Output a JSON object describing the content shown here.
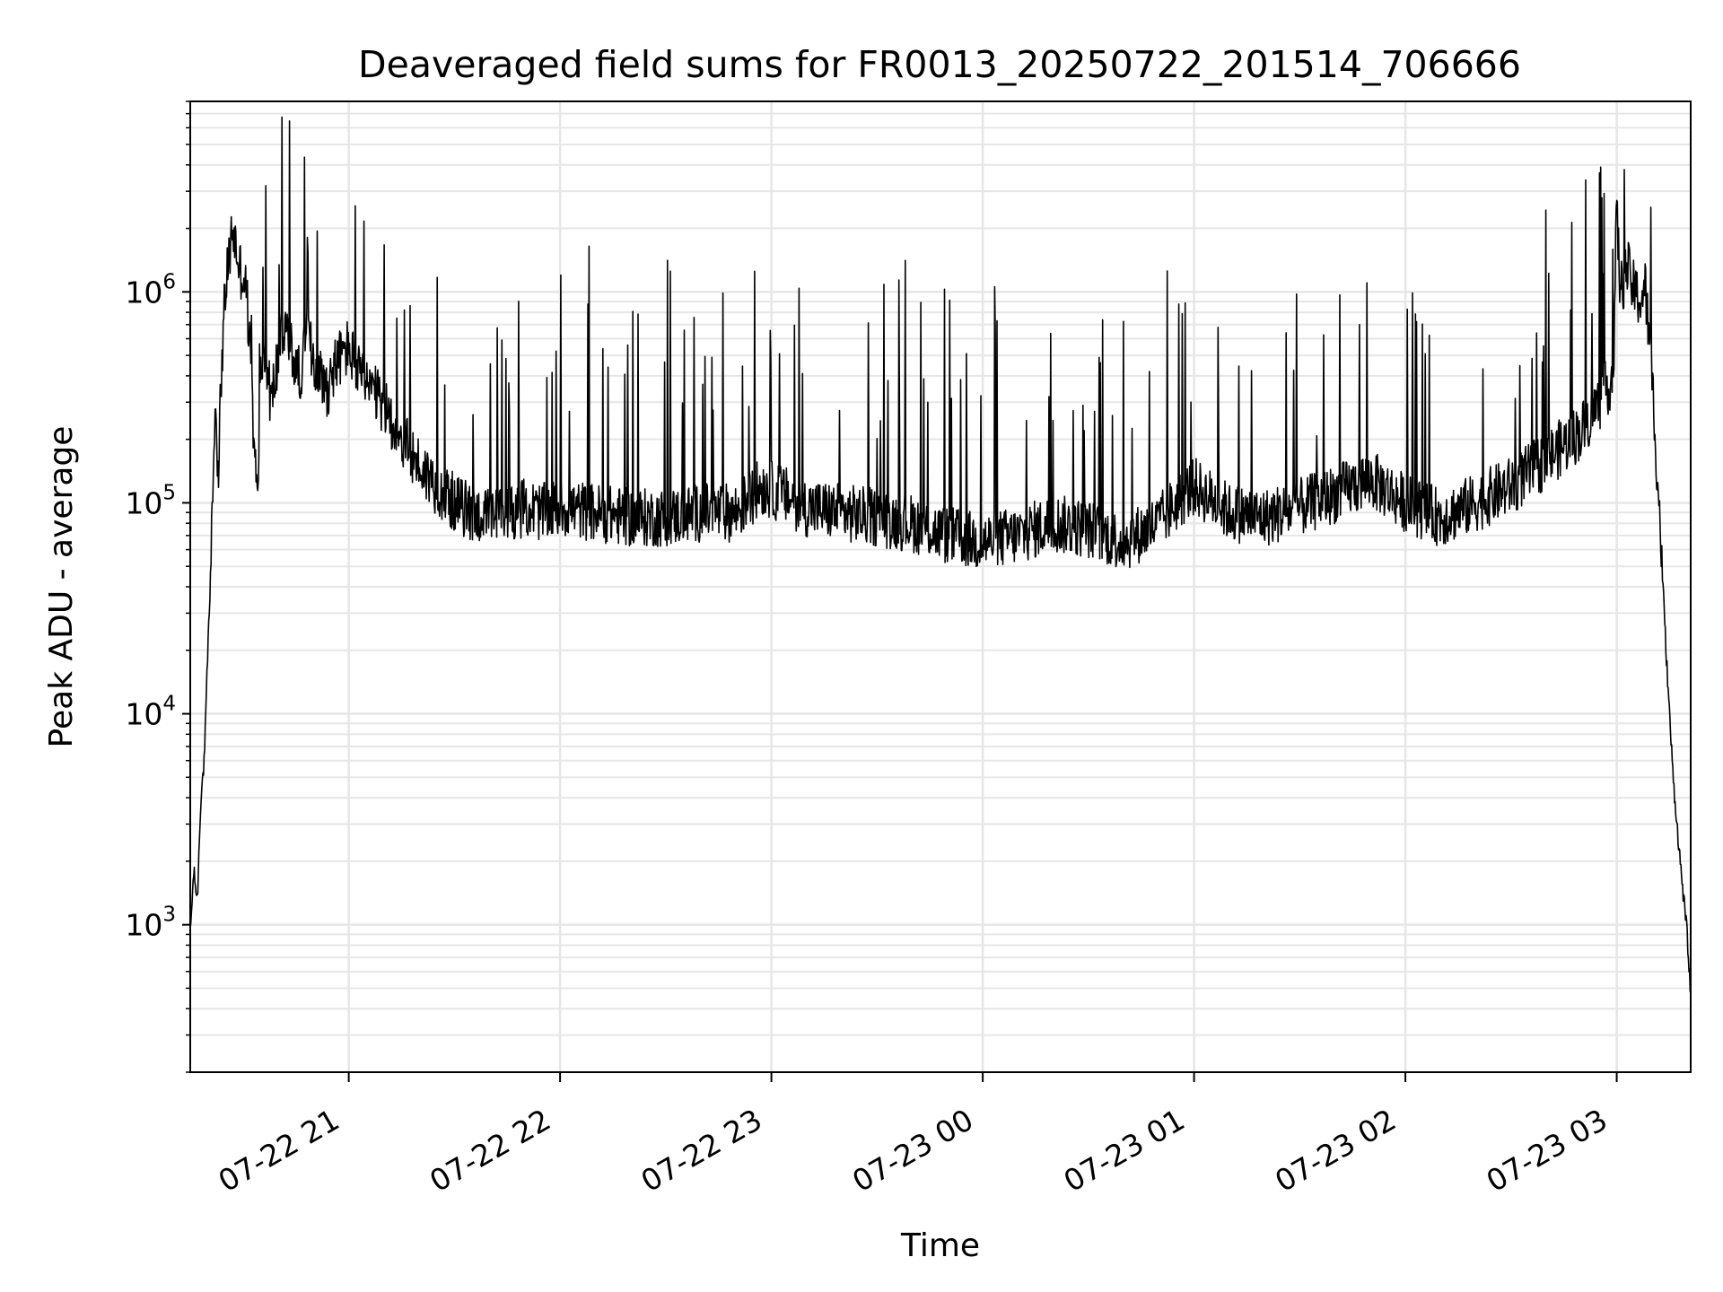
{
  "chart_data": {
    "type": "line",
    "title": "Deaveraged field sums for FR0013_20250722_201514_706666",
    "xlabel": "Time",
    "ylabel": "Peak ADU - average",
    "y_scale": "log",
    "ylim": [
      200,
      8000000
    ],
    "xlim": [
      "2025-07-22 20:15",
      "2025-07-23 03:21"
    ],
    "grid": true,
    "legend": "none",
    "line_color": "#000000",
    "grid_color": "#e6e6e6",
    "x_ticks": [
      {
        "value": "2025-07-22 21:00",
        "label": "07-22 21"
      },
      {
        "value": "2025-07-22 22:00",
        "label": "07-22 22"
      },
      {
        "value": "2025-07-22 23:00",
        "label": "07-22 23"
      },
      {
        "value": "2025-07-23 00:00",
        "label": "07-23 00"
      },
      {
        "value": "2025-07-23 01:00",
        "label": "07-23 01"
      },
      {
        "value": "2025-07-23 02:00",
        "label": "07-23 02"
      },
      {
        "value": "2025-07-23 03:00",
        "label": "07-23 03"
      }
    ],
    "y_ticks": [
      {
        "value": 1000,
        "base": "10",
        "exp": "3"
      },
      {
        "value": 10000,
        "base": "10",
        "exp": "4"
      },
      {
        "value": 100000,
        "base": "10",
        "exp": "5"
      },
      {
        "value": 1000000,
        "base": "10",
        "exp": "6"
      }
    ],
    "series": [
      {
        "x": [
          "2025-07-22 20:15",
          "2025-07-22 20:16",
          "2025-07-22 20:17",
          "2025-07-22 20:18",
          "2025-07-22 20:19",
          "2025-07-22 20:20",
          "2025-07-22 20:21",
          "2025-07-22 20:22",
          "2025-07-22 20:23",
          "2025-07-22 20:24",
          "2025-07-22 20:25",
          "2025-07-22 20:27",
          "2025-07-22 20:29",
          "2025-07-22 20:30",
          "2025-07-22 20:31",
          "2025-07-22 20:32",
          "2025-07-22 20:33",
          "2025-07-22 20:34",
          "2025-07-22 20:35",
          "2025-07-22 20:36",
          "2025-07-22 20:37",
          "2025-07-22 20:38",
          "2025-07-22 20:40",
          "2025-07-22 20:42",
          "2025-07-22 20:44",
          "2025-07-22 20:46",
          "2025-07-22 20:48",
          "2025-07-22 20:50",
          "2025-07-22 20:52",
          "2025-07-22 20:54",
          "2025-07-22 20:56",
          "2025-07-22 20:58",
          "2025-07-22 21:00",
          "2025-07-22 21:03",
          "2025-07-22 21:06",
          "2025-07-22 21:09",
          "2025-07-22 21:12",
          "2025-07-22 21:15",
          "2025-07-22 21:20",
          "2025-07-22 21:25",
          "2025-07-22 21:30",
          "2025-07-22 21:35",
          "2025-07-22 21:40",
          "2025-07-22 21:45",
          "2025-07-22 21:50",
          "2025-07-22 21:55",
          "2025-07-22 22:00",
          "2025-07-22 22:10",
          "2025-07-22 22:20",
          "2025-07-22 22:30",
          "2025-07-22 22:40",
          "2025-07-22 22:50",
          "2025-07-22 22:57",
          "2025-07-22 23:03",
          "2025-07-22 23:10",
          "2025-07-22 23:20",
          "2025-07-22 23:30",
          "2025-07-22 23:40",
          "2025-07-22 23:50",
          "2025-07-23 00:00",
          "2025-07-23 00:10",
          "2025-07-23 00:20",
          "2025-07-23 00:30",
          "2025-07-23 00:40",
          "2025-07-23 00:50",
          "2025-07-23 00:55",
          "2025-07-23 01:00",
          "2025-07-23 01:10",
          "2025-07-23 01:20",
          "2025-07-23 01:30",
          "2025-07-23 01:40",
          "2025-07-23 01:50",
          "2025-07-23 02:00",
          "2025-07-23 02:10",
          "2025-07-23 02:20",
          "2025-07-23 02:30",
          "2025-07-23 02:40",
          "2025-07-23 02:50",
          "2025-07-23 02:55",
          "2025-07-23 02:59",
          "2025-07-23 03:00",
          "2025-07-23 03:01",
          "2025-07-23 03:03",
          "2025-07-23 03:05",
          "2025-07-23 03:07",
          "2025-07-23 03:08",
          "2025-07-23 03:10",
          "2025-07-23 03:12",
          "2025-07-23 03:14",
          "2025-07-23 03:16",
          "2025-07-23 03:18",
          "2025-07-23 03:20",
          "2025-07-23 03:21"
        ],
        "values": [
          900,
          1800,
          1300,
          4000,
          6000,
          20000,
          60000,
          300000,
          150000,
          500000,
          1000000,
          2000000,
          1300000,
          1200000,
          1000000,
          500000,
          200000,
          100000,
          400000,
          500000,
          400000,
          300000,
          500000,
          700000,
          500000,
          400000,
          600000,
          500000,
          400000,
          350000,
          450000,
          500000,
          550000,
          400000,
          350000,
          300000,
          250000,
          200000,
          150000,
          120000,
          100000,
          90000,
          85000,
          90000,
          95000,
          90000,
          95000,
          90000,
          85000,
          85000,
          90000,
          90000,
          120000,
          110000,
          95000,
          90000,
          85000,
          80000,
          70000,
          65000,
          70000,
          80000,
          75000,
          65000,
          80000,
          100000,
          120000,
          90000,
          85000,
          95000,
          110000,
          130000,
          100000,
          85000,
          100000,
          120000,
          160000,
          220000,
          300000,
          400000,
          2500000,
          1000000,
          1300000,
          1000000,
          900000,
          1100000,
          400000,
          100000,
          20000,
          5000,
          2000,
          900,
          450
        ]
      }
    ]
  }
}
